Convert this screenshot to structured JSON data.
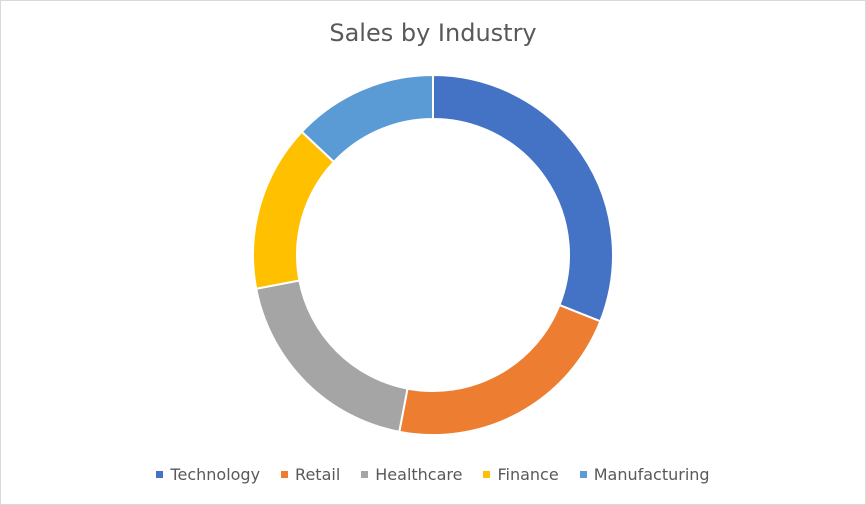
{
  "chart_data": {
    "type": "pie",
    "donut": true,
    "title": "Sales by Industry",
    "categories": [
      "Technology",
      "Retail",
      "Healthcare",
      "Finance",
      "Manufacturing"
    ],
    "values": [
      31,
      22,
      19,
      15,
      13
    ],
    "colors": [
      "#4472c4",
      "#ed7d31",
      "#a5a5a5",
      "#ffc000",
      "#5b9bd5"
    ],
    "legend_position": "bottom"
  }
}
